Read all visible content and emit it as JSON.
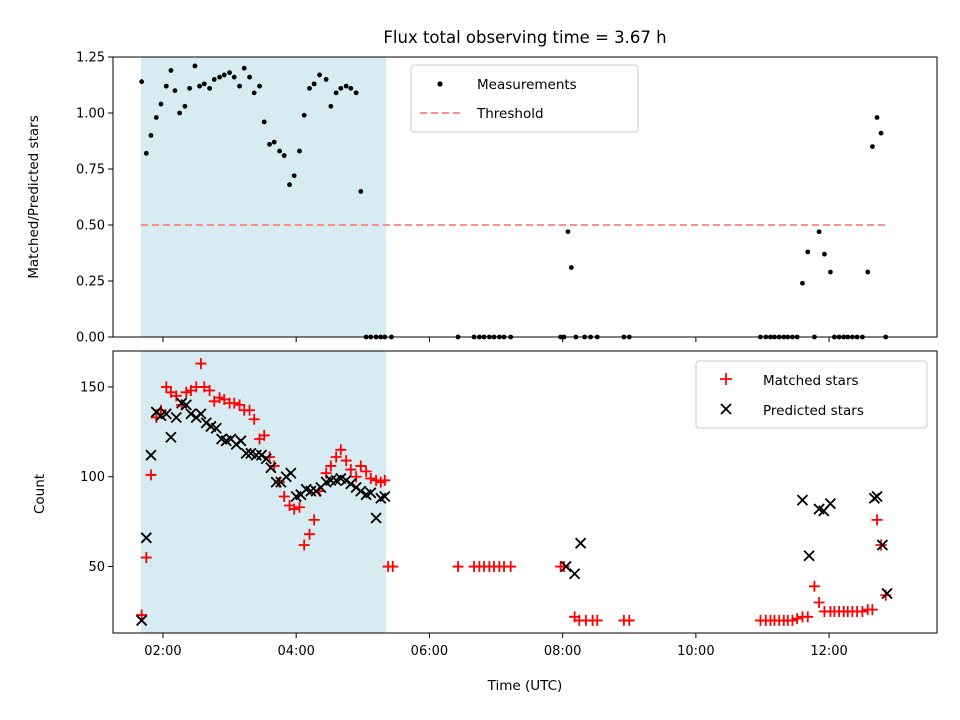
{
  "chart_data": [
    {
      "type": "scatter",
      "title": "Flux total observing time = 3.67 h",
      "xlabel": "",
      "ylabel": "Matched/Predicted stars",
      "xlim": [
        1.25,
        13.62
      ],
      "ylim": [
        0,
        1.25
      ],
      "xticks": [
        2,
        4,
        6,
        8,
        10,
        12
      ],
      "yticks": [
        0,
        0.25,
        0.5,
        0.75,
        1.0,
        1.25
      ],
      "ytick_labels": [
        "0.00",
        "0.25",
        "0.50",
        "0.75",
        "1.00",
        "1.25"
      ],
      "x_tick_labels_visible": false,
      "shaded_interval": [
        1.67,
        5.35
      ],
      "shade_color": "#add8e6",
      "grid": false,
      "legend_position": "upper-center",
      "series": [
        {
          "name": "Measurements",
          "marker": "dot",
          "color": "#000000",
          "x": [
            1.68,
            1.75,
            1.82,
            1.9,
            1.97,
            2.05,
            2.12,
            2.18,
            2.25,
            2.33,
            2.4,
            2.48,
            2.55,
            2.62,
            2.7,
            2.77,
            2.85,
            2.92,
            3.0,
            3.07,
            3.15,
            3.22,
            3.3,
            3.37,
            3.45,
            3.52,
            3.6,
            3.67,
            3.75,
            3.82,
            3.9,
            3.97,
            4.05,
            4.12,
            4.2,
            4.27,
            4.35,
            4.45,
            4.52,
            4.6,
            4.67,
            4.75,
            4.82,
            4.9,
            4.97,
            5.05,
            5.12,
            5.2,
            5.27,
            5.33,
            5.43,
            6.43,
            6.67,
            6.75,
            6.82,
            6.9,
            6.97,
            7.05,
            7.12,
            7.22,
            7.97,
            8.02,
            8.08,
            8.13,
            8.2,
            8.33,
            8.42,
            8.52,
            8.92,
            9.0,
            10.97,
            11.05,
            11.12,
            11.18,
            11.25,
            11.32,
            11.38,
            11.45,
            11.52,
            11.6,
            11.68,
            11.78,
            11.85,
            11.93,
            12.02,
            12.08,
            12.15,
            12.22,
            12.28,
            12.35,
            12.42,
            12.5,
            12.58,
            12.65,
            12.72,
            12.78,
            12.85
          ],
          "y": [
            1.14,
            0.82,
            0.9,
            0.98,
            1.04,
            1.12,
            1.19,
            1.1,
            1.0,
            1.03,
            1.11,
            1.21,
            1.12,
            1.13,
            1.11,
            1.15,
            1.16,
            1.17,
            1.18,
            1.16,
            1.12,
            1.2,
            1.16,
            1.09,
            1.12,
            0.96,
            0.86,
            0.87,
            0.83,
            0.81,
            0.68,
            0.72,
            0.83,
            0.99,
            1.11,
            1.13,
            1.17,
            1.15,
            1.03,
            1.09,
            1.11,
            1.12,
            1.11,
            1.09,
            0.65,
            0.0,
            0.0,
            0.0,
            0.0,
            0.0,
            0.0,
            0.0,
            0.0,
            0.0,
            0.0,
            0.0,
            0.0,
            0.0,
            0.0,
            0.0,
            0.0,
            0.0,
            0.47,
            0.31,
            0.0,
            0.0,
            0.0,
            0.0,
            0.0,
            0.0,
            0.0,
            0.0,
            0.0,
            0.0,
            0.0,
            0.0,
            0.0,
            0.0,
            0.0,
            0.24,
            0.38,
            0.0,
            0.47,
            0.37,
            0.29,
            0.0,
            0.0,
            0.0,
            0.0,
            0.0,
            0.0,
            0.0,
            0.29,
            0.85,
            0.98,
            0.91,
            0.0
          ]
        },
        {
          "name": "Threshold",
          "style": "dashed-line",
          "color": "#ff7f7f",
          "x": [
            1.67,
            12.87
          ],
          "y": [
            0.5,
            0.5
          ]
        }
      ]
    },
    {
      "type": "scatter",
      "title": "",
      "xlabel": "Time (UTC)",
      "ylabel": "Count",
      "xlim": [
        1.25,
        13.62
      ],
      "ylim": [
        13,
        170
      ],
      "xticks": [
        2,
        4,
        6,
        8,
        10,
        12
      ],
      "xtick_labels": [
        "02:00",
        "04:00",
        "06:00",
        "08:00",
        "10:00",
        "12:00"
      ],
      "yticks": [
        50,
        100,
        150
      ],
      "ytick_labels": [
        "50",
        "100",
        "150"
      ],
      "shaded_interval": [
        1.67,
        5.35
      ],
      "shade_color": "#add8e6",
      "grid": false,
      "legend_position": "upper-right",
      "series": [
        {
          "name": "Matched stars",
          "marker": "plus",
          "color": "#ff0000",
          "x": [
            1.68,
            1.75,
            1.82,
            1.9,
            1.97,
            2.05,
            2.12,
            2.2,
            2.28,
            2.35,
            2.42,
            2.5,
            2.57,
            2.62,
            2.7,
            2.77,
            2.85,
            2.92,
            3.0,
            3.07,
            3.15,
            3.22,
            3.3,
            3.37,
            3.45,
            3.52,
            3.6,
            3.67,
            3.75,
            3.82,
            3.9,
            3.97,
            4.05,
            4.12,
            4.2,
            4.27,
            4.35,
            4.45,
            4.52,
            4.6,
            4.67,
            4.75,
            4.82,
            4.9,
            4.97,
            5.05,
            5.12,
            5.2,
            5.27,
            5.33,
            5.38,
            5.45,
            6.43,
            6.67,
            6.75,
            6.82,
            6.9,
            6.97,
            7.05,
            7.12,
            7.22,
            7.97,
            8.02,
            8.18,
            8.25,
            8.35,
            8.45,
            8.52,
            8.92,
            9.0,
            10.97,
            11.05,
            11.12,
            11.18,
            11.25,
            11.32,
            11.38,
            11.45,
            11.52,
            11.6,
            11.68,
            11.78,
            11.85,
            11.93,
            12.02,
            12.08,
            12.15,
            12.22,
            12.28,
            12.35,
            12.42,
            12.5,
            12.58,
            12.65,
            12.72,
            12.78,
            12.85
          ],
          "y": [
            23,
            55,
            101,
            133,
            137,
            150,
            147,
            145,
            140,
            147,
            148,
            150,
            163,
            150,
            148,
            142,
            144,
            143,
            141,
            141,
            140,
            137,
            137,
            132,
            121,
            123,
            111,
            106,
            97,
            89,
            84,
            82,
            83,
            62,
            68,
            76,
            92,
            102,
            106,
            111,
            115,
            109,
            104,
            100,
            106,
            103,
            99,
            98,
            97,
            98,
            50,
            50,
            50,
            50,
            50,
            50,
            50,
            50,
            50,
            50,
            50,
            50,
            50,
            22,
            20,
            20,
            20,
            20,
            20,
            20,
            20,
            20,
            20,
            20,
            20,
            20,
            20,
            20,
            21,
            22,
            22,
            39,
            30,
            25,
            25,
            25,
            25,
            25,
            25,
            25,
            25,
            25,
            26,
            26,
            76,
            62,
            34
          ]
        },
        {
          "name": "Predicted stars",
          "marker": "x",
          "color": "#000000",
          "x": [
            1.68,
            1.75,
            1.82,
            1.9,
            1.97,
            2.05,
            2.12,
            2.2,
            2.28,
            2.35,
            2.42,
            2.5,
            2.57,
            2.65,
            2.72,
            2.8,
            2.88,
            2.95,
            3.02,
            3.1,
            3.17,
            3.25,
            3.32,
            3.4,
            3.48,
            3.55,
            3.62,
            3.7,
            3.77,
            3.85,
            3.92,
            4.0,
            4.07,
            4.15,
            4.22,
            4.3,
            4.37,
            4.45,
            4.52,
            4.6,
            4.67,
            4.75,
            4.82,
            4.9,
            4.97,
            5.05,
            5.12,
            5.2,
            5.27,
            5.33,
            8.05,
            8.18,
            8.27,
            11.6,
            11.7,
            11.85,
            11.92,
            12.02,
            12.68,
            12.72,
            12.8,
            12.87
          ],
          "y": [
            20,
            66,
            112,
            136,
            134,
            135,
            122,
            133,
            141,
            140,
            135,
            133,
            135,
            130,
            128,
            127,
            121,
            120,
            121,
            118,
            120,
            113,
            113,
            112,
            112,
            110,
            105,
            97,
            97,
            100,
            102,
            89,
            90,
            93,
            92,
            92,
            94,
            97,
            98,
            98,
            99,
            98,
            96,
            94,
            92,
            90,
            91,
            77,
            88,
            89,
            50,
            46,
            63,
            87,
            56,
            82,
            81,
            85,
            88,
            89,
            62,
            35
          ]
        }
      ]
    }
  ]
}
